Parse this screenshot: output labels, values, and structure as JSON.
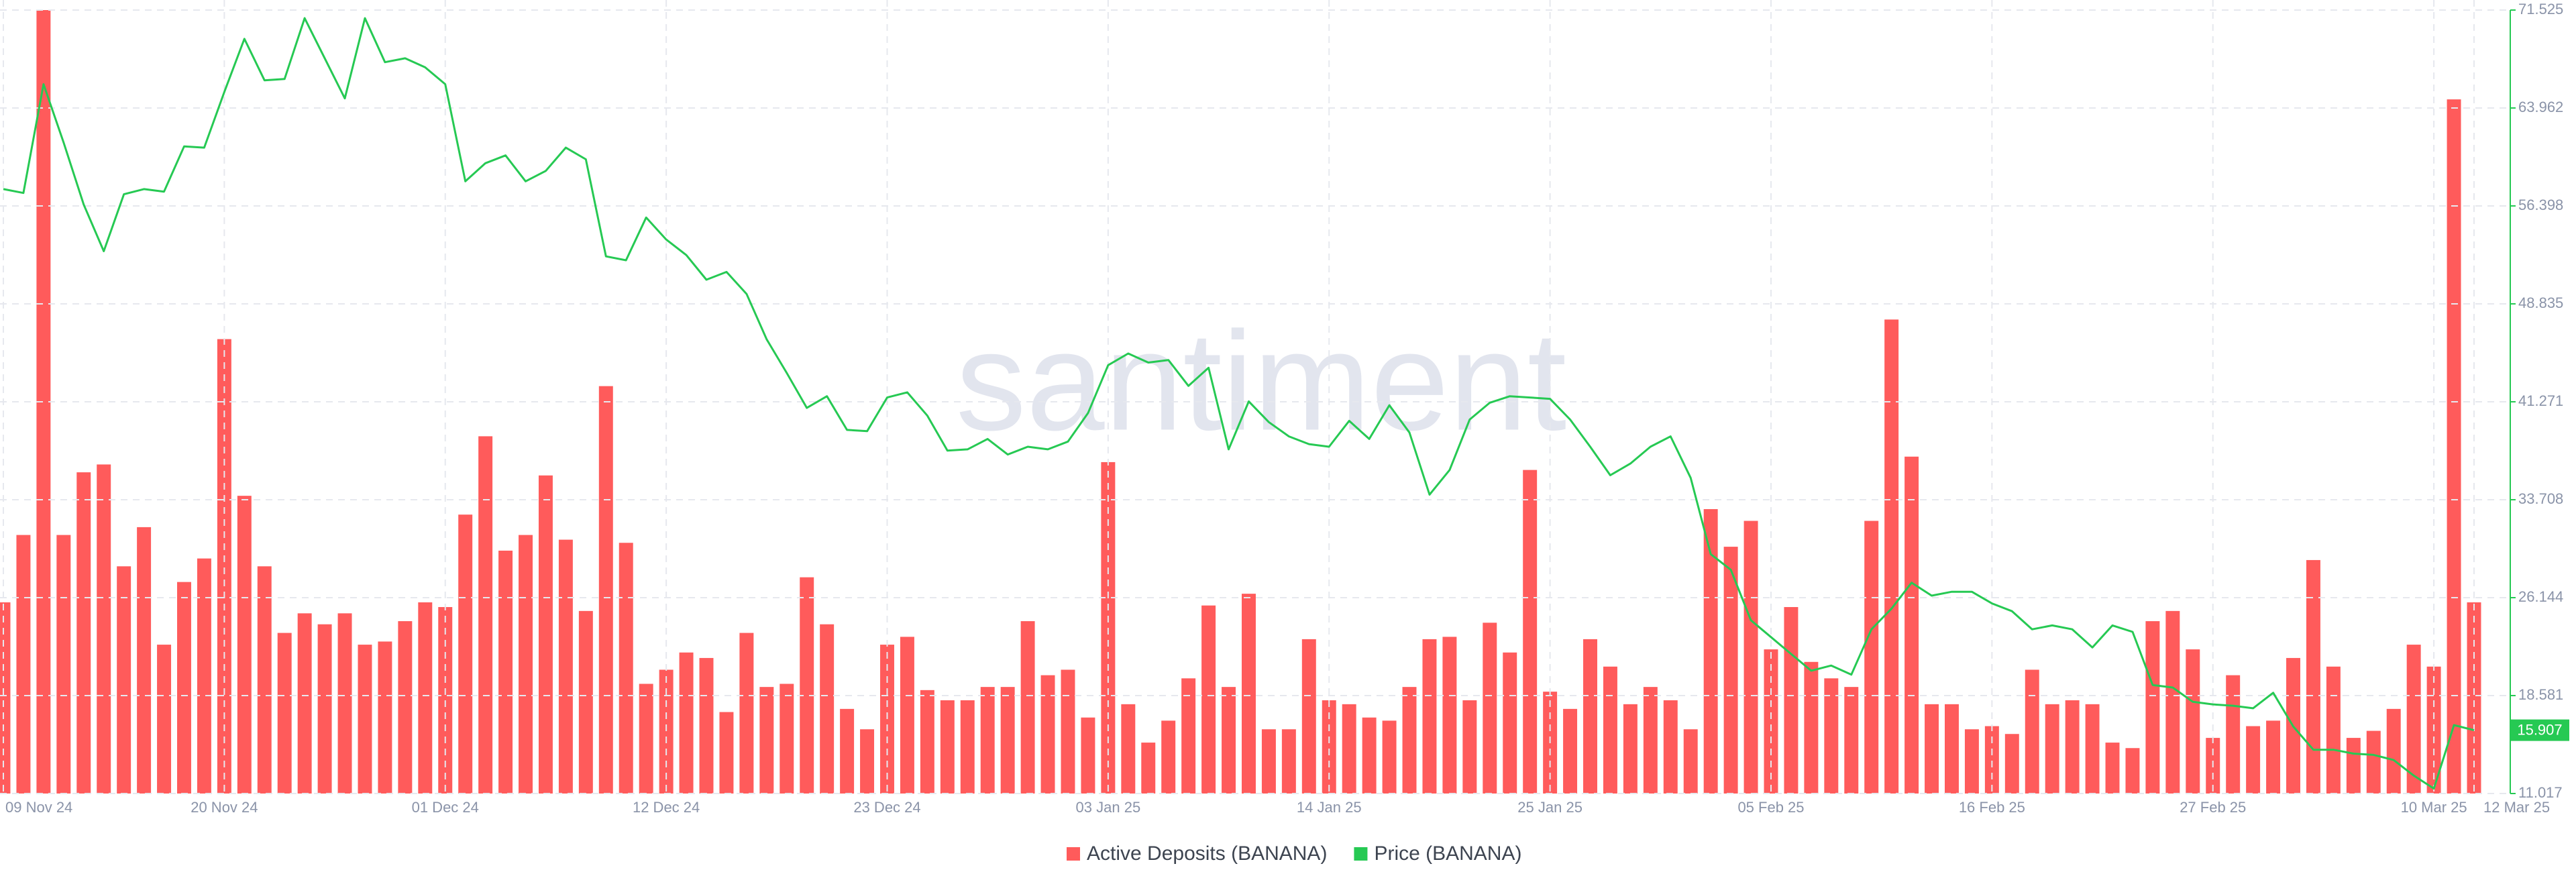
{
  "chart_data": {
    "type": "combo",
    "watermark": "santiment",
    "grid": true,
    "categories": [
      "09 Nov 24",
      null,
      null,
      null,
      null,
      null,
      null,
      null,
      null,
      null,
      null,
      "20 Nov 24",
      null,
      null,
      null,
      null,
      null,
      null,
      null,
      null,
      null,
      null,
      "01 Dec 24",
      null,
      null,
      null,
      null,
      null,
      null,
      null,
      null,
      null,
      null,
      "12 Dec 24",
      null,
      null,
      null,
      null,
      null,
      null,
      null,
      null,
      null,
      null,
      "23 Dec 24",
      null,
      null,
      null,
      null,
      null,
      null,
      null,
      null,
      null,
      null,
      "03 Jan 25",
      null,
      null,
      null,
      null,
      null,
      null,
      null,
      null,
      null,
      null,
      "14 Jan 25",
      null,
      null,
      null,
      null,
      null,
      null,
      null,
      null,
      null,
      null,
      "25 Jan 25",
      null,
      null,
      null,
      null,
      null,
      null,
      null,
      null,
      null,
      null,
      "05 Feb 25",
      null,
      null,
      null,
      null,
      null,
      null,
      null,
      null,
      null,
      null,
      "16 Feb 25",
      null,
      null,
      null,
      null,
      null,
      null,
      null,
      null,
      null,
      null,
      "27 Feb 25",
      null,
      null,
      null,
      null,
      null,
      null,
      null,
      null,
      null,
      null,
      "10 Mar 25",
      null,
      "12 Mar 25"
    ],
    "ylim": [
      0,
      100
    ],
    "y2lim": [
      11.017,
      71.525
    ],
    "y2ticks": [
      11.017,
      18.581,
      26.144,
      33.708,
      41.271,
      48.835,
      56.398,
      63.962,
      71.525
    ],
    "series": [
      {
        "name": "Active Deposits (BANANA)",
        "type": "bar",
        "color": "#ff5b5b",
        "axis": "y",
        "values": [
          24.4,
          33,
          100,
          33,
          41,
          42,
          29,
          34,
          19,
          27,
          30,
          58,
          38,
          29,
          20.5,
          23,
          21.6,
          23,
          19,
          19.4,
          22,
          24.4,
          23.8,
          35.6,
          45.6,
          31,
          33,
          40.6,
          32.4,
          23.3,
          52,
          32,
          14,
          15.8,
          18,
          17.3,
          10.4,
          20.5,
          13.6,
          14,
          27.6,
          21.6,
          10.8,
          8.2,
          19,
          20,
          13.2,
          11.9,
          11.9,
          13.6,
          13.6,
          22,
          15.1,
          15.8,
          9.7,
          42.3,
          11.4,
          6.5,
          9.3,
          14.7,
          24,
          13.6,
          25.5,
          8.2,
          8.2,
          19.7,
          11.9,
          11.4,
          9.7,
          9.3,
          13.6,
          19.7,
          20,
          11.9,
          21.8,
          18,
          41.3,
          13,
          10.8,
          19.7,
          16.2,
          11.4,
          13.6,
          11.9,
          8.2,
          36.3,
          31.5,
          34.8,
          18.4,
          23.8,
          16.8,
          14.7,
          13.6,
          34.8,
          60.5,
          43,
          11.4,
          11.4,
          8.2,
          8.6,
          7.6,
          15.8,
          11.4,
          11.9,
          11.4,
          6.5,
          5.8,
          22,
          23.3,
          18.4,
          7.1,
          15.1,
          8.6,
          9.3,
          17.3,
          29.8,
          16.2,
          7.1,
          8,
          10.8,
          19,
          16.2,
          88.6,
          24.4
        ]
      },
      {
        "name": "Price (BANANA)",
        "type": "line",
        "color": "#26c953",
        "axis": "y2",
        "values": [
          57.7,
          57.4,
          65.8,
          61.3,
          56.5,
          52.9,
          57.3,
          57.7,
          57.5,
          61.0,
          60.9,
          65.2,
          69.3,
          66.1,
          66.2,
          70.9,
          67.8,
          64.7,
          70.9,
          67.5,
          67.8,
          67.1,
          65.8,
          58.3,
          59.7,
          60.3,
          58.3,
          59.1,
          60.9,
          60.0,
          52.5,
          52.2,
          55.5,
          53.8,
          52.6,
          50.7,
          51.3,
          49.6,
          46.1,
          43.5,
          40.8,
          41.7,
          39.1,
          39.0,
          41.6,
          42.0,
          40.2,
          37.5,
          37.6,
          38.4,
          37.2,
          37.8,
          37.6,
          38.2,
          40.4,
          44.1,
          45.0,
          44.3,
          44.5,
          42.5,
          43.9,
          37.6,
          41.3,
          39.7,
          38.6,
          38.0,
          37.8,
          39.8,
          38.4,
          41.0,
          38.9,
          34.1,
          36.0,
          39.9,
          41.2,
          41.7,
          41.6,
          41.5,
          39.9,
          37.8,
          35.6,
          36.5,
          37.8,
          38.6,
          35.4,
          29.5,
          28.3,
          24.4,
          23.1,
          21.8,
          20.5,
          20.9,
          20.2,
          23.7,
          25.3,
          27.3,
          26.3,
          26.6,
          26.6,
          25.7,
          25.1,
          23.7,
          24.0,
          23.7,
          22.3,
          24.0,
          23.5,
          19.4,
          19.2,
          18.1,
          17.9,
          17.8,
          17.6,
          18.8,
          16.2,
          14.4,
          14.4,
          14.1,
          14.0,
          13.6,
          12.4,
          11.4,
          16.3,
          15.907
        ]
      }
    ]
  }
}
